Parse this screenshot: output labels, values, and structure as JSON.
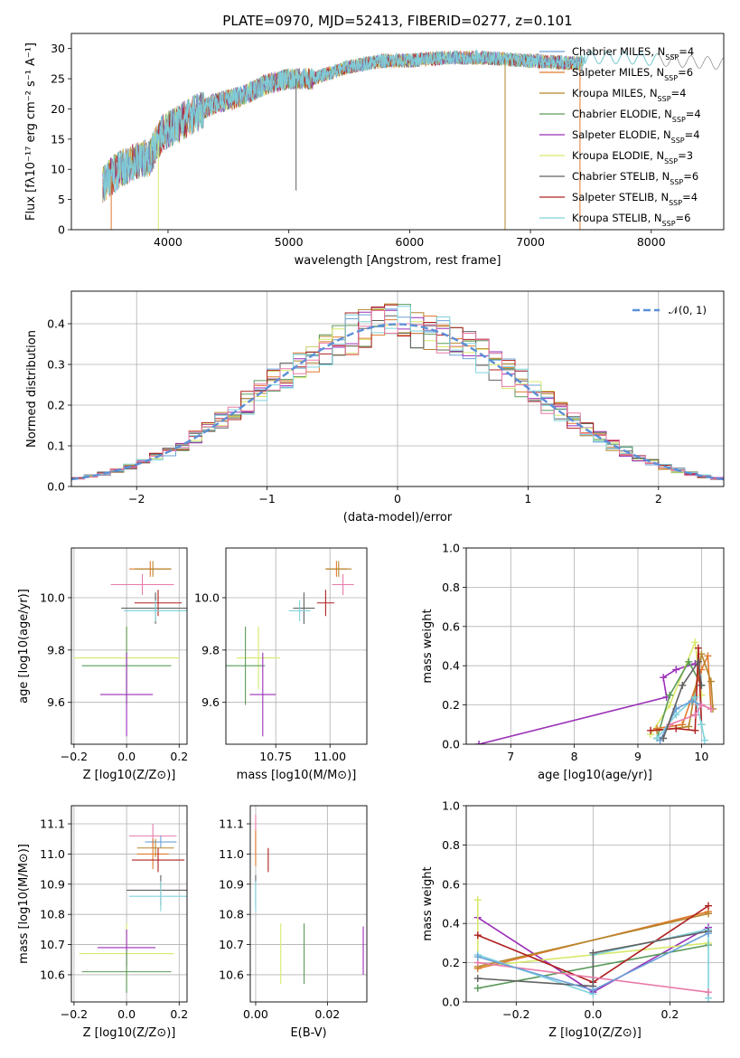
{
  "figure": {
    "title": "PLATE=0970, MJD=52413, FIBERID=0277, z=0.101"
  },
  "colors": {
    "chabrier_miles": "#6aa0d8",
    "salpeter_miles": "#e07a2e",
    "kroupa_miles": "#b5852a",
    "chabrier_elodie": "#5a9a5a",
    "salpeter_elodie": "#9a2fb8",
    "kroupa_elodie": "#d9e86a",
    "chabrier_stelib": "#606060",
    "salpeter_stelib": "#b02020",
    "kroupa_stelib": "#7fd3dc",
    "pink": "#e87aa8",
    "normal_curve": "#5b8fd6",
    "grid": "#b0b0b0"
  },
  "chart_data": [
    {
      "id": "spectrum",
      "type": "line",
      "xlabel": "wavelength [Angstrom, rest frame]",
      "ylabel": "Flux [fλ10⁻¹⁷ erg cm⁻² s⁻¹ A⁻¹]",
      "xlim": [
        3200,
        8600
      ],
      "ylim": [
        0,
        32.5
      ],
      "xticks": [
        "4000",
        "5000",
        "6000",
        "7000",
        "8000"
      ],
      "yticks": [
        "0",
        "5",
        "10",
        "15",
        "20",
        "25",
        "30"
      ],
      "grid": false,
      "legend": "right",
      "legend_entries": [
        "Chabrier MILES, N_SSP=4",
        "Salpeter MILES, N_SSP=6",
        "Kroupa MILES, N_SSP=4",
        "Chabrier ELODIE, N_SSP=4",
        "Salpeter ELODIE, N_SSP=4",
        "Kroupa ELODIE, N_SSP=3",
        "Chabrier STELIB, N_SSP=6",
        "Salpeter STELIB, N_SSP=4",
        "Kroupa STELIB, N_SSP=6"
      ],
      "continuum": [
        [
          3450,
          7.5
        ],
        [
          3600,
          10
        ],
        [
          3700,
          11
        ],
        [
          3850,
          12
        ],
        [
          3950,
          16
        ],
        [
          4050,
          17
        ],
        [
          4200,
          19
        ],
        [
          4400,
          21
        ],
        [
          4600,
          22
        ],
        [
          4800,
          24
        ],
        [
          5000,
          25
        ],
        [
          5200,
          25
        ],
        [
          5500,
          27
        ],
        [
          5800,
          28
        ],
        [
          6000,
          28
        ],
        [
          6300,
          28.5
        ],
        [
          6600,
          28.5
        ],
        [
          7000,
          28
        ],
        [
          7400,
          27.5
        ],
        [
          7500,
          28.5
        ],
        [
          7800,
          28.5
        ],
        [
          8000,
          28.2
        ],
        [
          8600,
          27.5
        ]
      ]
    },
    {
      "id": "residuals",
      "type": "bar",
      "xlabel": "(data-model)/error",
      "ylabel": "Normed distribution",
      "xlim": [
        -2.5,
        2.5
      ],
      "ylim": [
        0,
        0.48
      ],
      "xticks": [
        "−2",
        "−1",
        "0",
        "1",
        "2"
      ],
      "yticks": [
        "0.0",
        "0.1",
        "0.2",
        "0.3",
        "0.4"
      ],
      "grid": true,
      "legend": "top-right",
      "legend_entries": [
        "𝒩(0, 1)"
      ]
    },
    {
      "id": "age_vs_Z",
      "type": "scatter",
      "xlabel": "Z [log10(Z/Z⊙)]",
      "ylabel": "age [log10(age/yr)]",
      "xlim": [
        -0.21,
        0.23
      ],
      "ylim": [
        9.44,
        10.19
      ],
      "xticks": [
        "−0.2",
        "0.0",
        "0.2"
      ],
      "yticks": [
        "9.6",
        "9.8",
        "10.0"
      ],
      "grid": true,
      "points": [
        {
          "c": "salpeter_miles",
          "x": 0.09,
          "ex": 0.08,
          "y": 10.11,
          "ey": 0.03
        },
        {
          "c": "kroupa_miles",
          "x": 0.1,
          "ex": 0.07,
          "y": 10.11,
          "ey": 0.03
        },
        {
          "c": "pink",
          "x": 0.06,
          "ex": 0.12,
          "y": 10.05,
          "ey": 0.04
        },
        {
          "c": "salpeter_stelib",
          "x": 0.12,
          "ex": 0.09,
          "y": 9.98,
          "ey": 0.05
        },
        {
          "c": "chabrier_stelib",
          "x": 0.11,
          "ex": 0.13,
          "y": 9.96,
          "ey": 0.06
        },
        {
          "c": "kroupa_stelib",
          "x": 0.11,
          "ex": 0.12,
          "y": 9.95,
          "ey": 0.04
        },
        {
          "c": "kroupa_elodie",
          "x": 0.0,
          "ex": 0.2,
          "y": 9.77,
          "ey": 0.12
        },
        {
          "c": "chabrier_elodie",
          "x": 0.0,
          "ex": 0.17,
          "y": 9.74,
          "ey": 0.15
        },
        {
          "c": "salpeter_elodie",
          "x": 0.0,
          "ex": 0.1,
          "y": 9.63,
          "ey": 0.16
        }
      ]
    },
    {
      "id": "age_vs_mass",
      "type": "scatter",
      "xlabel": "mass [log10(M/M⊙)]",
      "ylabel": "",
      "xlim": [
        10.52,
        11.17
      ],
      "ylim": [
        9.44,
        10.19
      ],
      "xticks": [
        "10.75",
        "11.00"
      ],
      "yticks": [
        "9.6",
        "9.8",
        "10.0"
      ],
      "grid": true,
      "points": [
        {
          "c": "salpeter_miles",
          "x": 11.03,
          "ex": 0.05,
          "y": 10.11,
          "ey": 0.03
        },
        {
          "c": "kroupa_miles",
          "x": 11.04,
          "ex": 0.06,
          "y": 10.11,
          "ey": 0.03
        },
        {
          "c": "pink",
          "x": 11.06,
          "ex": 0.05,
          "y": 10.05,
          "ey": 0.04
        },
        {
          "c": "salpeter_stelib",
          "x": 10.98,
          "ex": 0.04,
          "y": 9.98,
          "ey": 0.05
        },
        {
          "c": "chabrier_stelib",
          "x": 10.88,
          "ex": 0.05,
          "y": 9.96,
          "ey": 0.06
        },
        {
          "c": "kroupa_stelib",
          "x": 10.86,
          "ex": 0.05,
          "y": 9.95,
          "ey": 0.04
        },
        {
          "c": "kroupa_elodie",
          "x": 10.67,
          "ex": 0.1,
          "y": 9.77,
          "ey": 0.12
        },
        {
          "c": "chabrier_elodie",
          "x": 10.61,
          "ex": 0.09,
          "y": 9.74,
          "ey": 0.15
        },
        {
          "c": "salpeter_elodie",
          "x": 10.69,
          "ex": 0.06,
          "y": 9.63,
          "ey": 0.16
        }
      ]
    },
    {
      "id": "weight_vs_age",
      "type": "line",
      "xlabel": "age [log10(age/yr)]",
      "ylabel": "mass weight",
      "xlim": [
        6.3,
        10.35
      ],
      "ylim": [
        0,
        1.0
      ],
      "xticks": [
        "7",
        "8",
        "9",
        "10"
      ],
      "yticks": [
        "0.0",
        "0.2",
        "0.4",
        "0.6",
        "0.8",
        "1.0"
      ],
      "grid": true
    },
    {
      "id": "mass_vs_Z",
      "type": "scatter",
      "xlabel": "Z [log10(Z/Z⊙)]",
      "ylabel": "mass [log10(M/M⊙)]",
      "xlim": [
        -0.21,
        0.23
      ],
      "ylim": [
        10.51,
        11.16
      ],
      "xticks": [
        "−0.2",
        "0.0",
        "0.2"
      ],
      "yticks": [
        "10.6",
        "10.7",
        "10.8",
        "10.9",
        "11.0",
        "11.1"
      ],
      "grid": true,
      "points": [
        {
          "c": "pink",
          "x": 0.1,
          "ex": 0.09,
          "y": 11.06,
          "ey": 0.04
        },
        {
          "c": "chabrier_miles",
          "x": 0.13,
          "ex": 0.06,
          "y": 11.04,
          "ey": 0.02
        },
        {
          "c": "kroupa_miles",
          "x": 0.11,
          "ex": 0.07,
          "y": 11.02,
          "ey": 0.03
        },
        {
          "c": "salpeter_miles",
          "x": 0.1,
          "ex": 0.06,
          "y": 11.0,
          "ey": 0.05
        },
        {
          "c": "salpeter_stelib",
          "x": 0.12,
          "ex": 0.1,
          "y": 10.98,
          "ey": 0.04
        },
        {
          "c": "chabrier_stelib",
          "x": 0.13,
          "ex": 0.13,
          "y": 10.88,
          "ey": 0.05
        },
        {
          "c": "kroupa_stelib",
          "x": 0.13,
          "ex": 0.12,
          "y": 10.86,
          "ey": 0.05
        },
        {
          "c": "kroupa_elodie",
          "x": 0.0,
          "ex": 0.18,
          "y": 10.67,
          "ey": 0.1
        },
        {
          "c": "salpeter_elodie",
          "x": 0.0,
          "ex": 0.11,
          "y": 10.69,
          "ey": 0.06
        },
        {
          "c": "chabrier_elodie",
          "x": 0.0,
          "ex": 0.17,
          "y": 10.61,
          "ey": 0.07
        }
      ]
    },
    {
      "id": "mass_vs_ebv",
      "type": "scatter",
      "xlabel": "E(B-V)",
      "ylabel": "",
      "xlim": [
        -0.0015,
        0.031
      ],
      "ylim": [
        10.51,
        11.16
      ],
      "xticks": [
        "0.00",
        "0.02"
      ],
      "yticks": [
        "10.6",
        "10.7",
        "10.8",
        "10.9",
        "11.0",
        "11.1"
      ],
      "grid": true,
      "points": [
        {
          "c": "pink",
          "x": 0.0,
          "ex": 0,
          "y": 11.06,
          "ey": 0.07
        },
        {
          "c": "salpeter_miles",
          "x": 0.0,
          "ex": 0,
          "y": 11.02,
          "ey": 0.06
        },
        {
          "c": "salpeter_stelib",
          "x": 0.0035,
          "ex": 0,
          "y": 10.98,
          "ey": 0.04
        },
        {
          "c": "chabrier_stelib",
          "x": 0.0,
          "ex": 0,
          "y": 10.88,
          "ey": 0.05
        },
        {
          "c": "kroupa_stelib",
          "x": 0.0,
          "ex": 0,
          "y": 10.86,
          "ey": 0.05
        },
        {
          "c": "kroupa_elodie",
          "x": 0.007,
          "ex": 0,
          "y": 10.67,
          "ey": 0.1
        },
        {
          "c": "chabrier_elodie",
          "x": 0.0135,
          "ex": 0,
          "y": 10.67,
          "ey": 0.1
        },
        {
          "c": "salpeter_elodie",
          "x": 0.03,
          "ex": 0,
          "y": 10.68,
          "ey": 0.08
        }
      ]
    },
    {
      "id": "weight_vs_Z",
      "type": "line",
      "xlabel": "Z [log10(Z/Z⊙)]",
      "ylabel": "mass weight",
      "xlim": [
        -0.33,
        0.34
      ],
      "ylim": [
        0,
        1.0
      ],
      "xticks": [
        "−0.2",
        "0.0",
        "0.2"
      ],
      "yticks": [
        "0.0",
        "0.2",
        "0.4",
        "0.6",
        "0.8",
        "1.0"
      ],
      "grid": true
    }
  ]
}
